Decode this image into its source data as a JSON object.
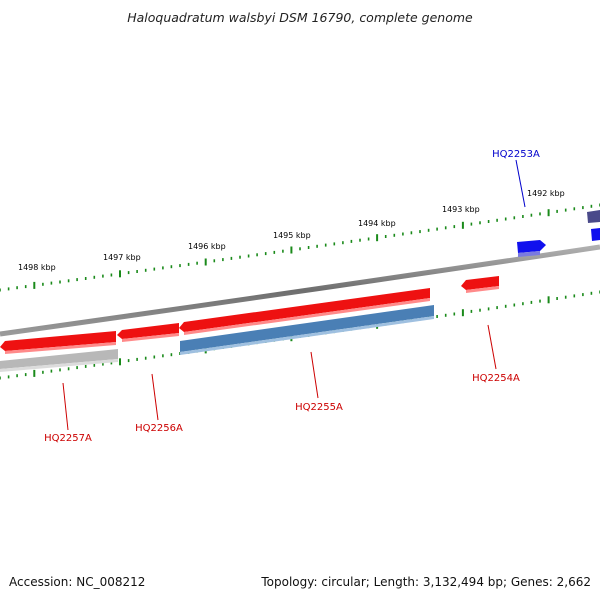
{
  "title": "Haloquadratum walsbyi DSM 16790, complete genome",
  "footer": {
    "accession": "Accession: NC_008212",
    "stats": "Topology: circular; Length: 3,132,494 bp; Genes: 2,662"
  },
  "ruler": {
    "unit": "kbp",
    "labels": [
      {
        "kbp": 1492,
        "text": "1492 kbp"
      },
      {
        "kbp": 1493,
        "text": "1493 kbp"
      },
      {
        "kbp": 1494,
        "text": "1494 kbp"
      },
      {
        "kbp": 1495,
        "text": "1495 kbp"
      },
      {
        "kbp": 1496,
        "text": "1496 kbp"
      },
      {
        "kbp": 1497,
        "text": "1497 kbp"
      },
      {
        "kbp": 1498,
        "text": "1498 kbp"
      }
    ]
  },
  "colors": {
    "backbone": "#8a8a8a",
    "forward_gene": "#1010ee",
    "forward_gene_dark": "#4a4a8a",
    "reverse_gene": "#ee1111",
    "reverse_gene_light": "#ff8080",
    "feature_blue": "#4a7fb5",
    "feature_grey": "#b0b0b0",
    "tick": "#1a8a1a",
    "label_forward": "#0000cc",
    "label_reverse": "#cc0000"
  },
  "genes": [
    {
      "id": "HQ2253A",
      "strand": "+",
      "label_color": "forward"
    },
    {
      "id": "HQ2254A",
      "strand": "-",
      "label_color": "reverse"
    },
    {
      "id": "HQ2255A",
      "strand": "-",
      "label_color": "reverse"
    },
    {
      "id": "HQ2256A",
      "strand": "-",
      "label_color": "reverse"
    },
    {
      "id": "HQ2257A",
      "strand": "-",
      "label_color": "reverse"
    }
  ]
}
